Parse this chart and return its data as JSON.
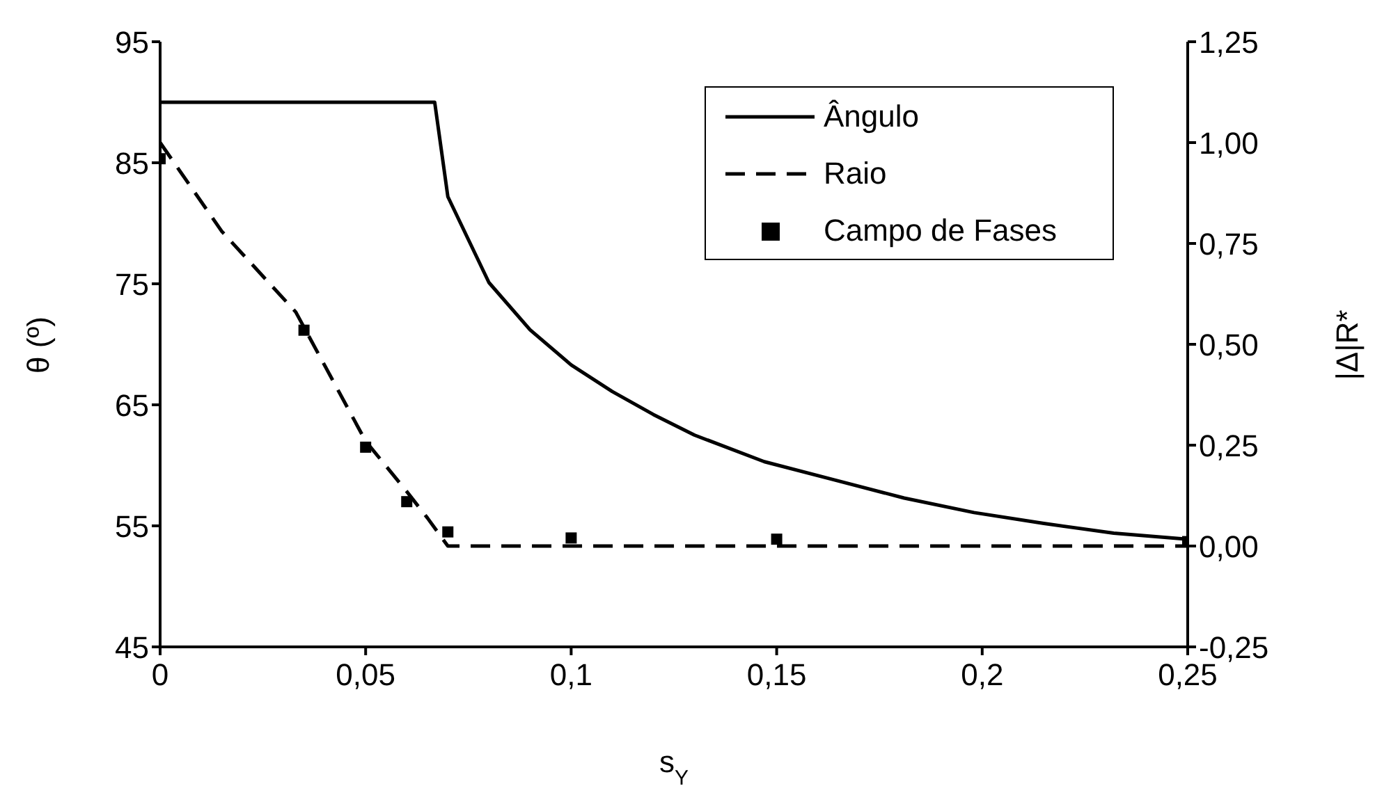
{
  "chart_data": {
    "type": "line",
    "xlabel": "s$_{Y}$",
    "ylabel": "θ (º)",
    "y2label": "|Δ|R*",
    "xlim": [
      0,
      0.25
    ],
    "xticks": [
      0,
      {
        "value": 0.05,
        "label": "0,05"
      },
      {
        "value": 0.1,
        "label": "0,1"
      },
      {
        "value": 0.15,
        "label": "0,15"
      },
      {
        "value": 0.2,
        "label": "0,2"
      },
      {
        "value": 0.25,
        "label": "0,25"
      }
    ],
    "ylim": [
      45,
      95
    ],
    "yticks": [
      45,
      55,
      65,
      75,
      85,
      95
    ],
    "y2lim": [
      -0.25,
      1.25
    ],
    "y2ticks": [
      {
        "value": -0.25,
        "label": "-0,25"
      },
      {
        "value": 0,
        "label": "0,00"
      },
      {
        "value": 0.25,
        "label": "0,25"
      },
      {
        "value": 0.5,
        "label": "0,50"
      },
      {
        "value": 0.75,
        "label": "0,75"
      },
      {
        "value": 1,
        "label": "1,00"
      },
      {
        "value": 1.25,
        "label": "1,25"
      }
    ],
    "legend": "top right",
    "series": [
      {
        "name": "Ângulo",
        "color": "#000000",
        "line_style": "solid",
        "marker": "none",
        "x": [
          0,
          0.0668,
          0.07,
          0.08,
          0.09,
          0.1,
          0.11,
          0.12,
          0.13,
          0.147,
          0.164,
          0.181,
          0.198,
          0.215,
          0.232,
          0.25
        ],
        "values": [
          90,
          90,
          82.2,
          75.1,
          71.2,
          68.3,
          66.1,
          64.2,
          62.5,
          60.3,
          58.8,
          57.3,
          56.1,
          55.2,
          54.4,
          53.9
        ]
      },
      {
        "name": "Raio",
        "color": "#000000",
        "axis": "y2",
        "line_style": "dashed",
        "marker": "none",
        "x": [
          0,
          0.015,
          0.033,
          0.05,
          0.06,
          0.065,
          0.07,
          0.25
        ],
        "values": [
          1.0,
          0.78,
          0.58,
          0.26,
          0.135,
          0.07,
          0,
          0
        ]
      },
      {
        "name": "Campo de Fases",
        "color": "#000000",
        "type": "scatter",
        "axis": "y2",
        "marker": "square",
        "x": [
          0,
          0.035,
          0.05,
          0.06,
          0.07,
          0.1,
          0.15,
          0.25
        ],
        "values": [
          0.96,
          0.535,
          0.245,
          0.11,
          0.035,
          0.02,
          0.017,
          0.011
        ]
      }
    ]
  }
}
